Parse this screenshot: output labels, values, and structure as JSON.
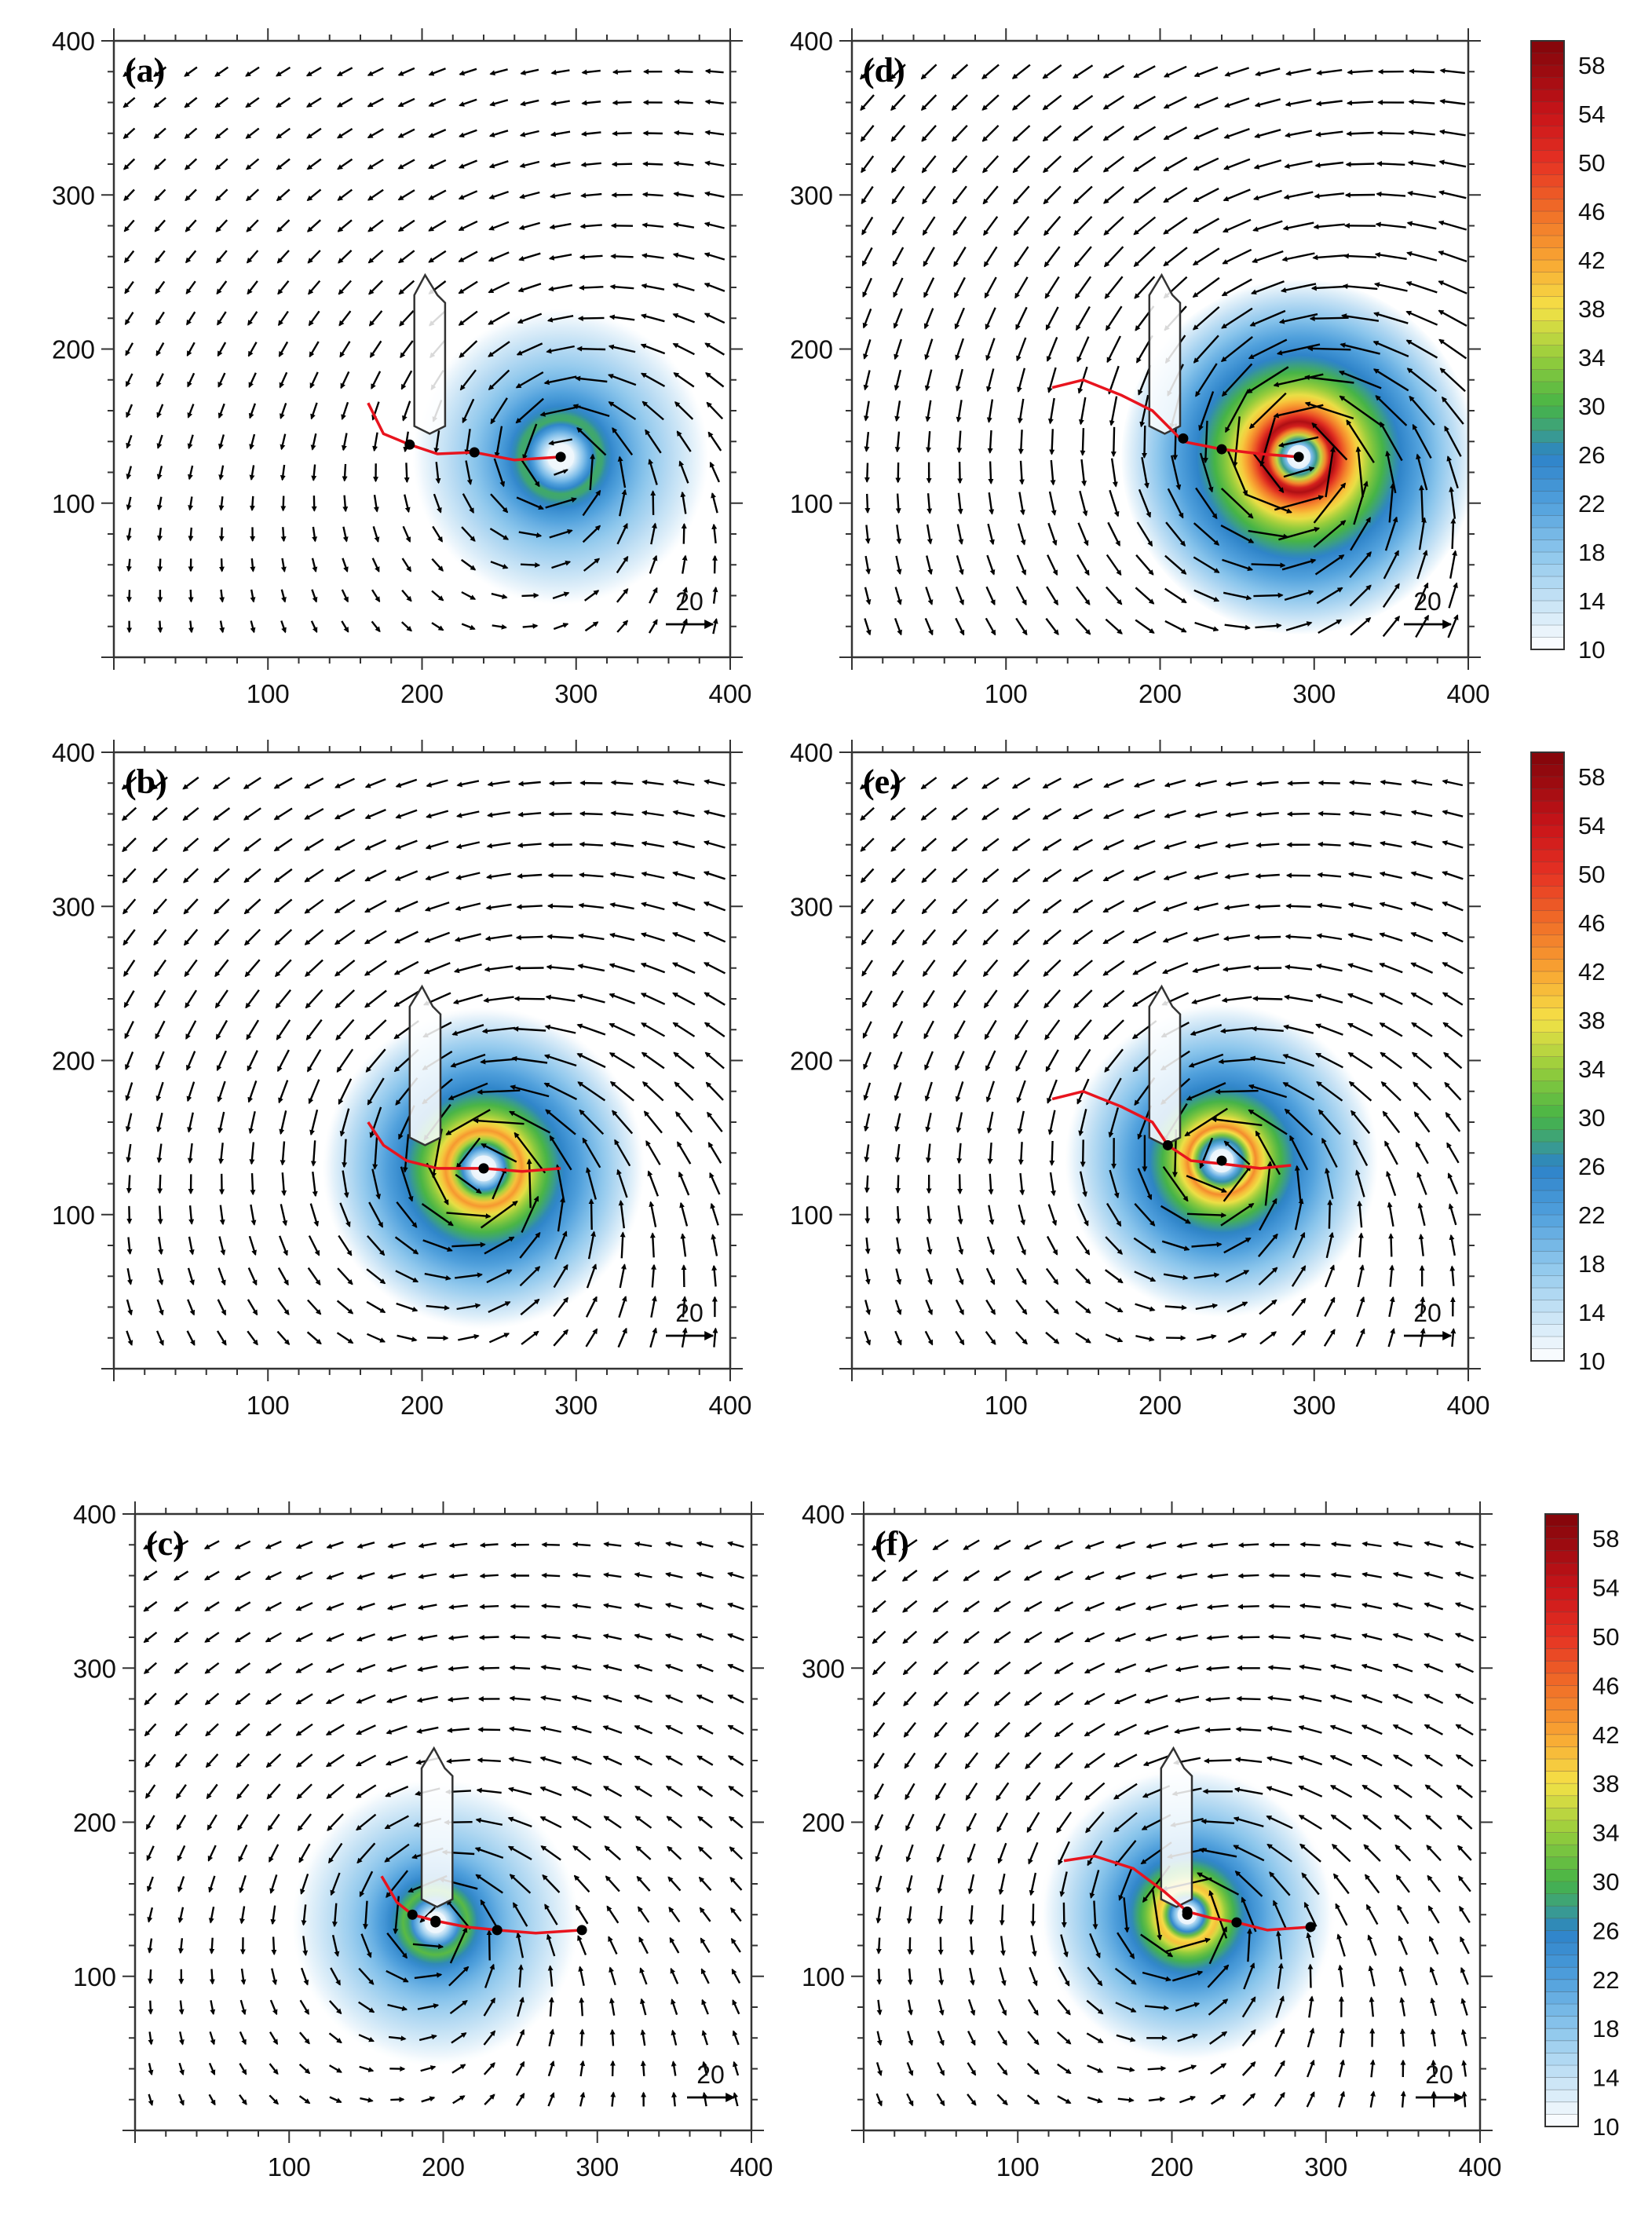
{
  "figure": {
    "panel_order": [
      "a",
      "d",
      "b",
      "e",
      "c",
      "f"
    ],
    "colors": {
      "track": "#e8141e",
      "arrow": "#000000",
      "frame": "#333333",
      "island_fill": "#ffffff",
      "island_stroke": "#333333",
      "eye_fill": "#eef6fb"
    }
  },
  "chart_data": [
    {
      "type": "vector-field-contour",
      "panel_label": "(a)",
      "x_ticks": [
        "100",
        "200",
        "300",
        "400"
      ],
      "y_ticks": [
        "100",
        "200",
        "300",
        "400"
      ],
      "xlim": [
        0,
        400
      ],
      "ylim": [
        0,
        400
      ],
      "reference_vector_label": "20",
      "reference_vector_value": 20,
      "vortex_center": [
        290,
        130
      ],
      "peak_wind": 30,
      "core_radius": 25,
      "extent_radius": 120,
      "track": [
        [
          165,
          165
        ],
        [
          175,
          145
        ],
        [
          192,
          138
        ],
        [
          210,
          132
        ],
        [
          234,
          133
        ],
        [
          260,
          128
        ],
        [
          290,
          130
        ]
      ],
      "track_points": [
        [
          192,
          138
        ],
        [
          234,
          133
        ]
      ],
      "island": [
        [
          195,
          150
        ],
        [
          195,
          235
        ],
        [
          202,
          248
        ],
        [
          210,
          235
        ],
        [
          215,
          230
        ],
        [
          215,
          150
        ],
        [
          205,
          145
        ]
      ],
      "colorbar_shown": false
    },
    {
      "type": "vector-field-contour",
      "panel_label": "(d)",
      "x_ticks": [
        "100",
        "200",
        "300",
        "400"
      ],
      "y_ticks": [
        "100",
        "200",
        "300",
        "400"
      ],
      "xlim": [
        0,
        400
      ],
      "ylim": [
        0,
        400
      ],
      "reference_vector_label": "20",
      "reference_vector_value": 20,
      "vortex_center": [
        290,
        130
      ],
      "peak_wind": 58,
      "core_radius": 22,
      "extent_radius": 115,
      "track": [
        [
          130,
          175
        ],
        [
          150,
          180
        ],
        [
          175,
          170
        ],
        [
          195,
          160
        ],
        [
          215,
          140
        ],
        [
          240,
          135
        ],
        [
          265,
          132
        ],
        [
          290,
          130
        ]
      ],
      "track_points": [
        [
          215,
          142
        ],
        [
          240,
          135
        ]
      ],
      "island": [
        [
          193,
          150
        ],
        [
          193,
          235
        ],
        [
          201,
          248
        ],
        [
          208,
          235
        ],
        [
          213,
          230
        ],
        [
          213,
          150
        ],
        [
          203,
          145
        ]
      ],
      "colorbar_shown": true,
      "colorbar_labels": [
        "58",
        "54",
        "50",
        "46",
        "42",
        "38",
        "34",
        "30",
        "26",
        "22",
        "18",
        "14",
        "10"
      ]
    },
    {
      "type": "vector-field-contour",
      "panel_label": "(b)",
      "x_ticks": [
        "100",
        "200",
        "300",
        "400"
      ],
      "y_ticks": [
        "100",
        "200",
        "300",
        "400"
      ],
      "xlim": [
        0,
        400
      ],
      "ylim": [
        0,
        400
      ],
      "reference_vector_label": "20",
      "reference_vector_value": 20,
      "vortex_center": [
        240,
        130
      ],
      "peak_wind": 44,
      "core_radius": 24,
      "extent_radius": 110,
      "track": [
        [
          165,
          160
        ],
        [
          175,
          145
        ],
        [
          190,
          135
        ],
        [
          210,
          130
        ],
        [
          240,
          130
        ],
        [
          265,
          128
        ],
        [
          290,
          130
        ]
      ],
      "track_points": [
        [
          240,
          130
        ]
      ],
      "island": [
        [
          192,
          150
        ],
        [
          192,
          235
        ],
        [
          200,
          248
        ],
        [
          207,
          235
        ],
        [
          212,
          230
        ],
        [
          212,
          150
        ],
        [
          202,
          145
        ]
      ],
      "colorbar_shown": false
    },
    {
      "type": "vector-field-contour",
      "panel_label": "(e)",
      "x_ticks": [
        "100",
        "200",
        "300",
        "400"
      ],
      "y_ticks": [
        "100",
        "200",
        "300",
        "400"
      ],
      "xlim": [
        0,
        400
      ],
      "ylim": [
        0,
        400
      ],
      "reference_vector_label": "20",
      "reference_vector_value": 20,
      "vortex_center": [
        240,
        135
      ],
      "peak_wind": 44,
      "core_radius": 22,
      "extent_radius": 110,
      "track": [
        [
          130,
          175
        ],
        [
          150,
          180
        ],
        [
          175,
          170
        ],
        [
          195,
          160
        ],
        [
          205,
          145
        ],
        [
          220,
          135
        ],
        [
          240,
          133
        ],
        [
          265,
          130
        ],
        [
          285,
          132
        ]
      ],
      "track_points": [
        [
          205,
          145
        ]
      ],
      "island": [
        [
          193,
          150
        ],
        [
          193,
          235
        ],
        [
          201,
          248
        ],
        [
          208,
          235
        ],
        [
          213,
          230
        ],
        [
          213,
          150
        ],
        [
          203,
          145
        ]
      ],
      "colorbar_shown": true,
      "colorbar_labels": [
        "58",
        "54",
        "50",
        "46",
        "42",
        "38",
        "34",
        "30",
        "26",
        "22",
        "18",
        "14",
        "10"
      ]
    },
    {
      "type": "vector-field-contour",
      "panel_label": "(c)",
      "x_ticks": [
        "100",
        "200",
        "300",
        "400"
      ],
      "y_ticks": [
        "100",
        "200",
        "300",
        "400"
      ],
      "xlim": [
        0,
        400
      ],
      "ylim": [
        0,
        400
      ],
      "reference_vector_label": "20",
      "reference_vector_value": 20,
      "vortex_center": [
        195,
        135
      ],
      "peak_wind": 32,
      "core_radius": 20,
      "extent_radius": 120,
      "track": [
        [
          160,
          165
        ],
        [
          170,
          148
        ],
        [
          180,
          140
        ],
        [
          195,
          136
        ],
        [
          215,
          132
        ],
        [
          235,
          130
        ],
        [
          260,
          128
        ],
        [
          290,
          130
        ]
      ],
      "track_points": [
        [
          180,
          140
        ],
        [
          195,
          136
        ],
        [
          235,
          130
        ],
        [
          290,
          130
        ]
      ],
      "island": [
        [
          186,
          150
        ],
        [
          186,
          235
        ],
        [
          194,
          248
        ],
        [
          201,
          235
        ],
        [
          206,
          230
        ],
        [
          206,
          150
        ],
        [
          196,
          145
        ]
      ],
      "colorbar_shown": false
    },
    {
      "type": "vector-field-contour",
      "panel_label": "(f)",
      "x_ticks": [
        "100",
        "200",
        "300",
        "400"
      ],
      "y_ticks": [
        "100",
        "200",
        "300",
        "400"
      ],
      "xlim": [
        0,
        400
      ],
      "ylim": [
        0,
        400
      ],
      "reference_vector_label": "20",
      "reference_vector_value": 20,
      "vortex_center": [
        210,
        140
      ],
      "peak_wind": 42,
      "core_radius": 18,
      "extent_radius": 110,
      "track": [
        [
          130,
          175
        ],
        [
          150,
          178
        ],
        [
          175,
          170
        ],
        [
          195,
          155
        ],
        [
          210,
          142
        ],
        [
          225,
          138
        ],
        [
          242,
          135
        ],
        [
          262,
          130
        ],
        [
          290,
          132
        ]
      ],
      "track_points": [
        [
          210,
          142
        ],
        [
          242,
          135
        ],
        [
          290,
          132
        ]
      ],
      "island": [
        [
          193,
          150
        ],
        [
          193,
          235
        ],
        [
          201,
          248
        ],
        [
          208,
          235
        ],
        [
          213,
          230
        ],
        [
          213,
          150
        ],
        [
          203,
          145
        ]
      ],
      "colorbar_shown": true,
      "colorbar_labels": [
        "58",
        "54",
        "50",
        "46",
        "42",
        "38",
        "34",
        "30",
        "26",
        "22",
        "18",
        "14",
        "10"
      ]
    }
  ]
}
